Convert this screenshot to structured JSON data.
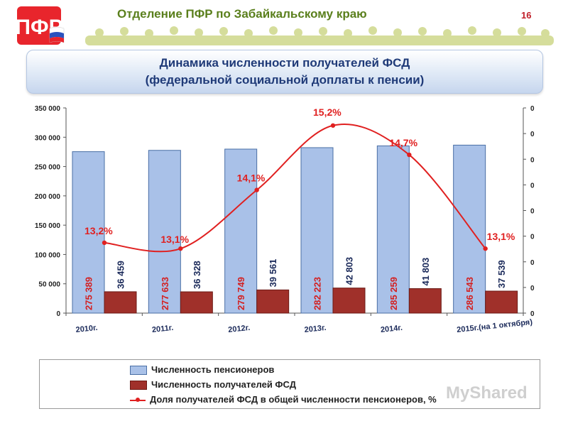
{
  "header": {
    "org_title": "Отделение ПФР по Забайкальскому краю",
    "page_number": "16",
    "logo_text": "ПФР"
  },
  "title": {
    "line1": "Динамика численности получателей ФСД",
    "line2": "(федеральной социальной доплаты к пенсии)"
  },
  "chart_data": {
    "type": "bar",
    "categories": [
      "2010г.",
      "2011г.",
      "2012г.",
      "2013г.",
      "2014г.",
      "2015г.(на 1 октября)"
    ],
    "series": [
      {
        "name": "Численность пенсионеров",
        "type": "bar",
        "axis": "left",
        "values": [
          275389,
          277633,
          279749,
          282223,
          285259,
          286543
        ],
        "labels": [
          "275 389",
          "277 633",
          "279 749",
          "282 223",
          "285 259",
          "286 543"
        ]
      },
      {
        "name": "Численность получателей ФСД",
        "type": "bar",
        "axis": "left",
        "values": [
          36459,
          36328,
          39561,
          42803,
          41803,
          37539
        ],
        "labels": [
          "36 459",
          "36 328",
          "39 561",
          "42 803",
          "41 803",
          "37 539"
        ]
      },
      {
        "name": "Доля получателей ФСД в общей численности пенсионеров, %",
        "type": "line",
        "axis": "right",
        "values": [
          13.2,
          13.1,
          14.1,
          15.2,
          14.7,
          13.1
        ],
        "labels": [
          "13,2%",
          "13,1%",
          "14,1%",
          "15,2%",
          "14,7%",
          "13,1%"
        ]
      }
    ],
    "ylim": [
      0,
      350000
    ],
    "y_ticks": [
      "0",
      "50 000",
      "100 000",
      "150 000",
      "200 000",
      "250 000",
      "300 000",
      "350 000"
    ],
    "y2_ticks": [
      "0",
      "0",
      "0",
      "0",
      "0",
      "0",
      "0",
      "0",
      "0"
    ],
    "line_range": [
      12.0,
      15.5
    ],
    "legend_position": "bottom",
    "grid": false,
    "colors": {
      "bar1": "#a9c1e8",
      "bar1_border": "#4a6fa5",
      "bar2": "#a0302a",
      "bar2_border": "#6b1a15",
      "line": "#e02020",
      "bar1_label": "#d42020",
      "bar2_label": "#1b2a5a"
    }
  },
  "watermark": "MyShared"
}
